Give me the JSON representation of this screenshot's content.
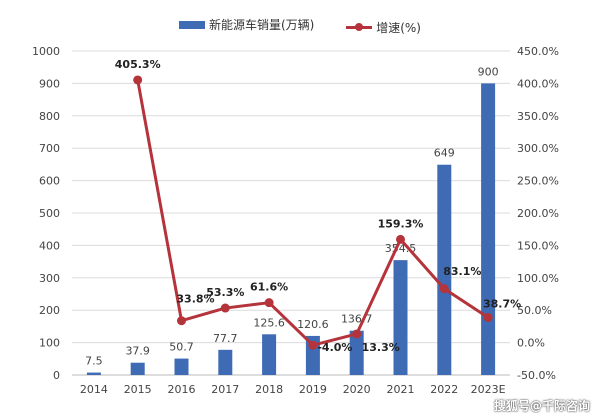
{
  "chart_data": {
    "type": "bar+line",
    "categories": [
      "2014",
      "2015",
      "2016",
      "2017",
      "2018",
      "2019",
      "2020",
      "2021",
      "2022",
      "2023E"
    ],
    "series": [
      {
        "name": "新能源车销量(万辆)",
        "type": "bar",
        "axis": "left",
        "color": "#3e6bb4",
        "values": [
          7.5,
          37.9,
          50.7,
          77.7,
          125.6,
          120.6,
          136.7,
          354.5,
          649,
          900
        ],
        "labels": [
          "7.5",
          "37.9",
          "50.7",
          "77.7",
          "125.6",
          "120.6",
          "136.7",
          "354.5",
          "649",
          "900"
        ]
      },
      {
        "name": "增速(%)",
        "type": "line",
        "axis": "right",
        "color": "#b5333a",
        "values": [
          null,
          405.3,
          33.8,
          53.3,
          61.6,
          -4.0,
          13.3,
          159.3,
          83.1,
          38.7
        ],
        "labels": [
          "",
          "405.3%",
          "33.8%",
          "53.3%",
          "61.6%",
          "-4.0%",
          "13.3%",
          "159.3%",
          "83.1%",
          "38.7%"
        ]
      }
    ],
    "y_left": {
      "range": [
        0,
        1000
      ],
      "ticks": [
        "0",
        "100",
        "200",
        "300",
        "400",
        "500",
        "600",
        "700",
        "800",
        "900",
        "1000"
      ]
    },
    "y_right": {
      "range": [
        -50,
        450
      ],
      "ticks": [
        "-50.0%",
        "0.0%",
        "50.0%",
        "100.0%",
        "150.0%",
        "200.0%",
        "250.0%",
        "300.0%",
        "350.0%",
        "400.0%",
        "450.0%"
      ]
    },
    "grid": true,
    "legend": "top"
  },
  "watermark": "搜狐号@千际咨询"
}
